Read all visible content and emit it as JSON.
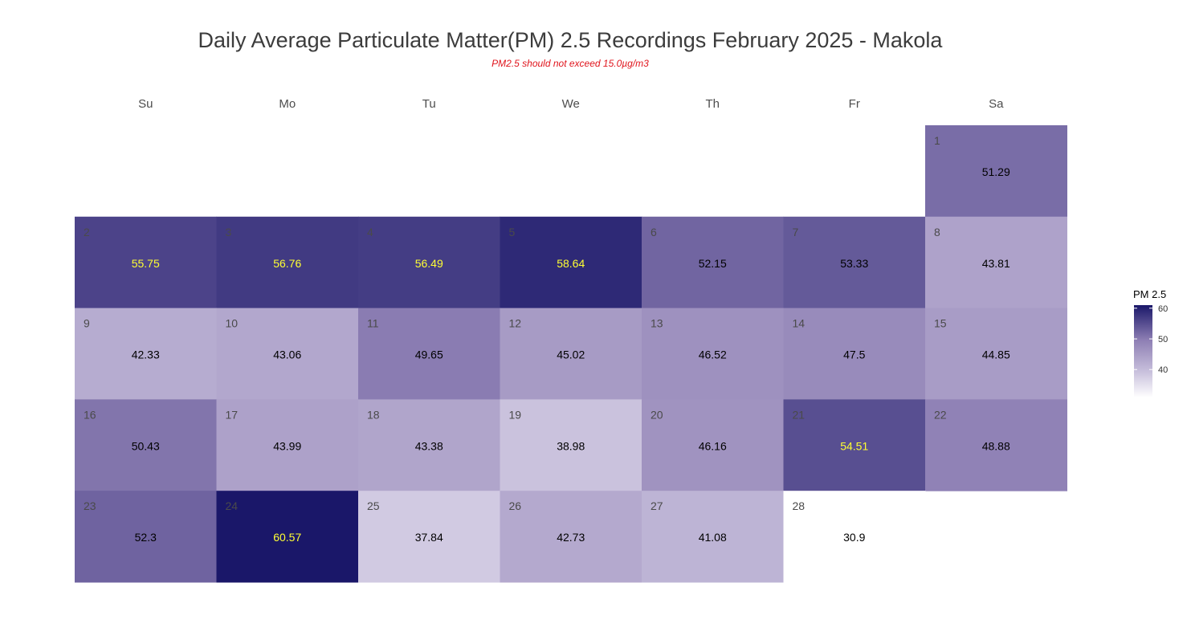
{
  "chart_data": {
    "type": "heatmap",
    "title": "Daily Average Particulate Matter(PM) 2.5 Recordings February 2025 -  Makola",
    "subtitle": "PM2.5 should not exceed 15.0µg/m3",
    "weekdays": [
      "Su",
      "Mo",
      "Tu",
      "We",
      "Th",
      "Fr",
      "Sa"
    ],
    "first_weekday_index": 6,
    "days": [
      {
        "day": "1",
        "value": 51.29,
        "label": "51.29"
      },
      {
        "day": "2",
        "value": 55.75,
        "label": "55.75"
      },
      {
        "day": "3",
        "value": 56.76,
        "label": "56.76"
      },
      {
        "day": "4",
        "value": 56.49,
        "label": "56.49"
      },
      {
        "day": "5",
        "value": 58.64,
        "label": "58.64"
      },
      {
        "day": "6",
        "value": 52.15,
        "label": "52.15"
      },
      {
        "day": "7",
        "value": 53.33,
        "label": "53.33"
      },
      {
        "day": "8",
        "value": 43.81,
        "label": "43.81"
      },
      {
        "day": "9",
        "value": 42.33,
        "label": "42.33"
      },
      {
        "day": "10",
        "value": 43.06,
        "label": "43.06"
      },
      {
        "day": "11",
        "value": 49.65,
        "label": "49.65"
      },
      {
        "day": "12",
        "value": 45.02,
        "label": "45.02"
      },
      {
        "day": "13",
        "value": 46.52,
        "label": "46.52"
      },
      {
        "day": "14",
        "value": 47.5,
        "label": "47.5"
      },
      {
        "day": "15",
        "value": 44.85,
        "label": "44.85"
      },
      {
        "day": "16",
        "value": 50.43,
        "label": "50.43"
      },
      {
        "day": "17",
        "value": 43.99,
        "label": "43.99"
      },
      {
        "day": "18",
        "value": 43.38,
        "label": "43.38"
      },
      {
        "day": "19",
        "value": 38.98,
        "label": "38.98"
      },
      {
        "day": "20",
        "value": 46.16,
        "label": "46.16"
      },
      {
        "day": "21",
        "value": 54.51,
        "label": "54.51"
      },
      {
        "day": "22",
        "value": 48.88,
        "label": "48.88"
      },
      {
        "day": "23",
        "value": 52.3,
        "label": "52.3"
      },
      {
        "day": "24",
        "value": 60.57,
        "label": "60.57"
      },
      {
        "day": "25",
        "value": 37.84,
        "label": "37.84"
      },
      {
        "day": "26",
        "value": 42.73,
        "label": "42.73"
      },
      {
        "day": "27",
        "value": 41.08,
        "label": "41.08"
      },
      {
        "day": "28",
        "value": 30.9,
        "label": "30.9"
      }
    ],
    "value_range": [
      30.9,
      60.57
    ],
    "highlight_threshold": 54,
    "colors": {
      "low": "#ffffff",
      "mid1": "#c8c0dc",
      "mid2": "#8e7fb4",
      "high": "#1a1769",
      "highlight_text": "#ffff33",
      "normal_text": "#000000"
    },
    "legend": {
      "title": "PM 2.5",
      "ticks": [
        {
          "value": 60,
          "label": "60"
        },
        {
          "value": 50,
          "label": "50"
        },
        {
          "value": 40,
          "label": "40"
        }
      ]
    }
  }
}
